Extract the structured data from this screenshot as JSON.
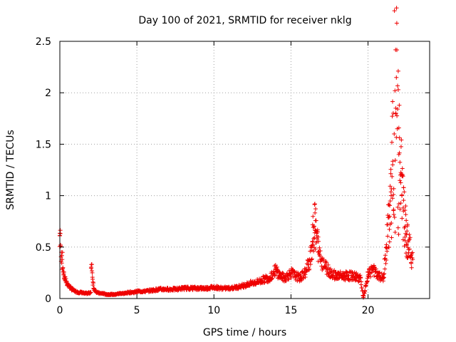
{
  "chart_data": {
    "type": "scatter",
    "title": "Day 100 of 2021, SRMTID for receiver nklg",
    "xlabel": "GPS time / hours",
    "ylabel": "SRMTID / TECUs",
    "xlim": [
      0,
      24
    ],
    "ylim": [
      0,
      2.5
    ],
    "xticks": [
      0,
      5,
      10,
      15,
      20
    ],
    "xtick_labels": [
      "0",
      "5",
      "10",
      "15",
      "20"
    ],
    "yticks": [
      0,
      0.5,
      1,
      1.5,
      2,
      2.5
    ],
    "ytick_labels": [
      "0",
      "0.5",
      "1",
      "1.5",
      "2",
      "2.5"
    ],
    "grid": true,
    "marker": "+",
    "color": "#ee0000",
    "series": [
      {
        "name": "SRMTID",
        "points": [
          [
            0.0,
            0.61
          ],
          [
            0.05,
            0.52
          ],
          [
            0.1,
            0.45
          ],
          [
            0.15,
            0.38
          ],
          [
            0.2,
            0.3
          ],
          [
            0.25,
            0.24
          ],
          [
            0.3,
            0.2
          ],
          [
            0.4,
            0.17
          ],
          [
            0.5,
            0.14
          ],
          [
            0.6,
            0.12
          ],
          [
            0.7,
            0.1
          ],
          [
            0.8,
            0.09
          ],
          [
            0.9,
            0.08
          ],
          [
            1.0,
            0.07
          ],
          [
            1.2,
            0.06
          ],
          [
            1.4,
            0.06
          ],
          [
            1.6,
            0.05
          ],
          [
            1.8,
            0.05
          ],
          [
            2.0,
            0.06
          ],
          [
            2.05,
            0.33
          ],
          [
            2.1,
            0.25
          ],
          [
            2.15,
            0.16
          ],
          [
            2.2,
            0.1
          ],
          [
            2.4,
            0.06
          ],
          [
            2.6,
            0.05
          ],
          [
            2.8,
            0.05
          ],
          [
            3.0,
            0.04
          ],
          [
            3.3,
            0.04
          ],
          [
            3.6,
            0.04
          ],
          [
            3.9,
            0.05
          ],
          [
            4.2,
            0.05
          ],
          [
            4.5,
            0.06
          ],
          [
            4.8,
            0.06
          ],
          [
            5.0,
            0.07
          ],
          [
            5.5,
            0.07
          ],
          [
            6.0,
            0.08
          ],
          [
            6.5,
            0.09
          ],
          [
            7.0,
            0.09
          ],
          [
            7.5,
            0.09
          ],
          [
            8.0,
            0.1
          ],
          [
            8.5,
            0.1
          ],
          [
            9.0,
            0.1
          ],
          [
            9.5,
            0.1
          ],
          [
            10.0,
            0.11
          ],
          [
            10.5,
            0.1
          ],
          [
            11.0,
            0.1
          ],
          [
            11.5,
            0.11
          ],
          [
            12.0,
            0.13
          ],
          [
            12.5,
            0.15
          ],
          [
            13.0,
            0.17
          ],
          [
            13.3,
            0.19
          ],
          [
            13.6,
            0.2
          ],
          [
            14.0,
            0.28
          ],
          [
            14.3,
            0.22
          ],
          [
            14.6,
            0.2
          ],
          [
            15.0,
            0.25
          ],
          [
            15.3,
            0.22
          ],
          [
            15.6,
            0.2
          ],
          [
            16.0,
            0.27
          ],
          [
            16.2,
            0.38
          ],
          [
            16.4,
            0.55
          ],
          [
            16.5,
            0.7
          ],
          [
            16.55,
            0.92
          ],
          [
            16.6,
            0.66
          ],
          [
            16.7,
            0.58
          ],
          [
            16.8,
            0.45
          ],
          [
            17.0,
            0.38
          ],
          [
            17.3,
            0.3
          ],
          [
            17.6,
            0.25
          ],
          [
            18.0,
            0.22
          ],
          [
            18.5,
            0.22
          ],
          [
            19.0,
            0.22
          ],
          [
            19.5,
            0.2
          ],
          [
            19.7,
            0.01
          ],
          [
            20.0,
            0.22
          ],
          [
            20.3,
            0.3
          ],
          [
            20.6,
            0.22
          ],
          [
            21.0,
            0.2
          ],
          [
            21.2,
            0.5
          ],
          [
            21.4,
            0.8
          ],
          [
            21.5,
            1.0
          ],
          [
            21.6,
            1.3
          ],
          [
            21.7,
            1.6
          ],
          [
            21.75,
            2.02
          ],
          [
            21.8,
            1.85
          ],
          [
            21.9,
            1.65
          ],
          [
            22.0,
            1.4
          ],
          [
            22.1,
            1.2
          ],
          [
            22.2,
            1.0
          ],
          [
            22.3,
            0.85
          ],
          [
            22.4,
            0.7
          ],
          [
            22.5,
            0.62
          ],
          [
            22.6,
            0.55
          ],
          [
            22.7,
            0.48
          ],
          [
            22.8,
            0.42
          ],
          [
            22.9,
            0.38
          ]
        ]
      }
    ]
  }
}
